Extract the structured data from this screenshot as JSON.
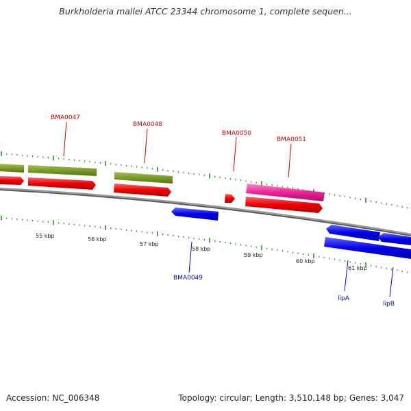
{
  "title": "Burkholderia mallei ATCC 23344 chromosome 1, complete sequen...",
  "footer": {
    "accession": "Accession: NC_006348",
    "stats": "Topology: circular; Length: 3,510,148 bp; Genes: 3,047"
  },
  "colors": {
    "backbone": "#888888",
    "olive": "#7a9a2a",
    "red": "#ee0000",
    "pink": "#ee2299",
    "blue": "#0000ee",
    "tick": "#118811",
    "label_red": "#cc0000",
    "label_blue": "#0000cc"
  },
  "genes": [
    {
      "name": "BMA0047",
      "color": "red"
    },
    {
      "name": "BMA0048",
      "color": "red"
    },
    {
      "name": "BMA0049",
      "color": "blue"
    },
    {
      "name": "BMA0050",
      "color": "red"
    },
    {
      "name": "BMA0051",
      "color": "red"
    },
    {
      "name": "lipA",
      "color": "blue"
    },
    {
      "name": "lipB",
      "color": "blue"
    }
  ],
  "kbp_labels": [
    "55 kbp",
    "56 kbp",
    "57 kbp",
    "58 kbp",
    "59 kbp",
    "60 kbp",
    "61 kbp"
  ]
}
